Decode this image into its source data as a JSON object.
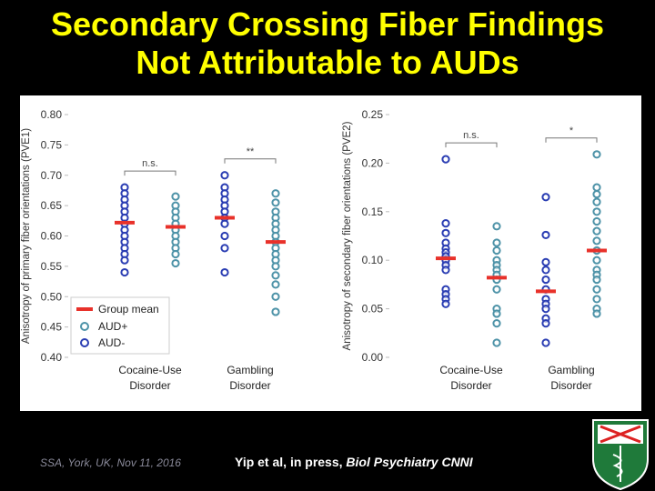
{
  "title": [
    "Secondary Crossing Fiber Findings",
    "Not Attributable to AUDs"
  ],
  "footer_left": "SSA, York, UK, Nov 11, 2016",
  "citation": {
    "text": "Yip et al, in press, ",
    "journal": "Biol Psychiatry CNNI"
  },
  "chart_data": [
    {
      "type": "strip",
      "y_label": "Anisotropy of primary fiber orientations (PVE1)",
      "categories": [
        "Cocaine-Use Disorder",
        "Gambling Disorder"
      ],
      "ylim": [
        0.4,
        0.8
      ],
      "yticks": [
        {
          "value": 0.4,
          "label": "0.40"
        },
        {
          "value": 0.45,
          "label": "0.45"
        },
        {
          "value": 0.5,
          "label": "0.50"
        },
        {
          "value": 0.55,
          "label": "0.55"
        },
        {
          "value": 0.6,
          "label": "0.60"
        },
        {
          "value": 0.65,
          "label": "0.65"
        },
        {
          "value": 0.7,
          "label": "0.70"
        },
        {
          "value": 0.75,
          "label": "0.75"
        },
        {
          "value": 0.8,
          "label": "0.80"
        }
      ],
      "mean_label": "Group mean",
      "mean_color": "#e8312a",
      "legend": "lower left",
      "annotations": [
        "n.s.",
        "**"
      ],
      "series": [
        {
          "name": "AUD+",
          "color": "#4e93a8",
          "values": [
            [
              0.665,
              0.65,
              0.64,
              0.63,
              0.62,
              0.61,
              0.6,
              0.59,
              0.58,
              0.57,
              0.555
            ],
            [
              0.67,
              0.655,
              0.64,
              0.63,
              0.62,
              0.61,
              0.6,
              0.59,
              0.58,
              0.57,
              0.56,
              0.55,
              0.535,
              0.52,
              0.5,
              0.475
            ]
          ],
          "means": [
            0.615,
            0.59
          ]
        },
        {
          "name": "AUD-",
          "color": "#2b3eb3",
          "values": [
            [
              0.68,
              0.67,
              0.66,
              0.65,
              0.64,
              0.63,
              0.62,
              0.61,
              0.6,
              0.59,
              0.58,
              0.57,
              0.56,
              0.54
            ],
            [
              0.7,
              0.68,
              0.67,
              0.66,
              0.65,
              0.64,
              0.63,
              0.62,
              0.6,
              0.58,
              0.54
            ]
          ],
          "means": [
            0.622,
            0.63
          ]
        }
      ]
    },
    {
      "type": "strip",
      "y_label": "Anisotropy of secondary fiber orientations (PVE2)",
      "categories": [
        "Cocaine-Use Disorder",
        "Gambling Disorder"
      ],
      "ylim": [
        0,
        0.25
      ],
      "yticks": [
        {
          "value": 0,
          "label": "0.00"
        },
        {
          "value": 0.05,
          "label": "0.05"
        },
        {
          "value": 0.1,
          "label": "0.10"
        },
        {
          "value": 0.15,
          "label": "0.15"
        },
        {
          "value": 0.2,
          "label": "0.20"
        },
        {
          "value": 0.25,
          "label": "0.25"
        }
      ],
      "mean_color": "#e8312a",
      "annotations": [
        "n.s.",
        "*"
      ],
      "series": [
        {
          "name": "AUD+",
          "color": "#4e93a8",
          "values": [
            [
              0.135,
              0.118,
              0.11,
              0.1,
              0.095,
              0.09,
              0.085,
              0.08,
              0.07,
              0.05,
              0.045,
              0.035,
              0.015
            ],
            [
              0.209,
              0.175,
              0.168,
              0.16,
              0.15,
              0.14,
              0.13,
              0.12,
              0.11,
              0.1,
              0.09,
              0.085,
              0.08,
              0.07,
              0.06,
              0.05,
              0.045
            ]
          ],
          "means": [
            0.082,
            0.11
          ]
        },
        {
          "name": "AUD-",
          "color": "#2b3eb3",
          "values": [
            [
              0.204,
              0.138,
              0.128,
              0.118,
              0.112,
              0.108,
              0.104,
              0.1,
              0.095,
              0.09,
              0.07,
              0.065,
              0.06,
              0.055
            ],
            [
              0.165,
              0.126,
              0.098,
              0.09,
              0.08,
              0.07,
              0.06,
              0.055,
              0.05,
              0.04,
              0.035,
              0.015
            ]
          ],
          "means": [
            0.102,
            0.068
          ]
        }
      ]
    }
  ]
}
